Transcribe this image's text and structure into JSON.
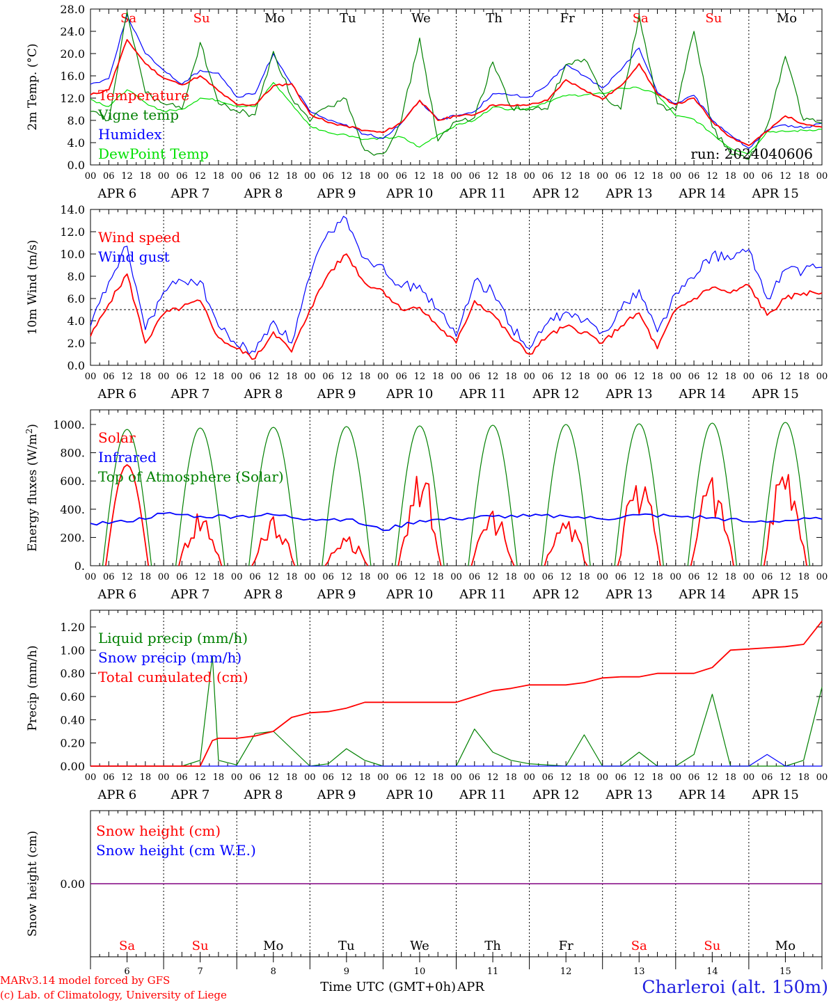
{
  "chart_data": [
    {
      "type": "line",
      "ylabel": "2m Temp. (°C)",
      "ylim": [
        0,
        28
      ],
      "yticks": [
        "0.0",
        "4.0",
        "8.0",
        "12.0",
        "16.0",
        "20.0",
        "24.0",
        "28.0"
      ],
      "annotation": "run: 2024040606",
      "x": [
        0,
        6,
        12,
        18,
        24,
        30,
        36,
        42,
        48,
        54,
        60,
        66,
        72,
        78,
        84,
        90,
        96,
        102,
        108,
        114,
        120,
        126,
        132,
        138,
        144,
        150,
        156,
        162,
        168,
        174,
        180,
        186,
        192,
        198,
        204,
        210,
        216,
        222,
        228,
        234,
        240
      ],
      "series": [
        {
          "name": "Temperature",
          "color": "#ff0000",
          "values": [
            12.6,
            13.5,
            22.5,
            18.2,
            15.6,
            14.4,
            16.0,
            13.3,
            10.8,
            10.8,
            14.2,
            14.6,
            9.2,
            7.6,
            7.0,
            6.2,
            5.8,
            7.6,
            11.6,
            8.0,
            8.8,
            9.0,
            10.8,
            10.6,
            10.8,
            11.6,
            15.3,
            13.5,
            11.8,
            14.2,
            18.2,
            12.7,
            10.8,
            12.0,
            7.8,
            5.0,
            3.5,
            6.0,
            8.8,
            7.4,
            6.8
          ]
        },
        {
          "name": "Vigne temp",
          "color": "#008000",
          "values": [
            9.6,
            8.0,
            27.5,
            13.0,
            11.0,
            10.0,
            22.0,
            11.0,
            9.6,
            9.0,
            20.4,
            12.0,
            7.8,
            10.6,
            11.8,
            2.6,
            2.0,
            8.0,
            22.8,
            4.3,
            7.8,
            8.5,
            18.5,
            10.4,
            10.0,
            10.0,
            18.0,
            19.0,
            13.0,
            10.0,
            27.0,
            11.0,
            9.8,
            24.0,
            6.8,
            2.0,
            1.0,
            7.0,
            19.5,
            8.0,
            7.5
          ]
        },
        {
          "name": "Humidex",
          "color": "#0000ff",
          "values": [
            14.5,
            15.5,
            27.0,
            20.0,
            17.0,
            14.5,
            17.0,
            16.5,
            12.2,
            12.8,
            20.0,
            14.5,
            9.6,
            8.0,
            7.2,
            5.5,
            4.8,
            7.5,
            11.6,
            8.2,
            8.8,
            9.6,
            12.8,
            12.5,
            12.2,
            14.4,
            18.0,
            16.0,
            13.8,
            17.0,
            21.0,
            13.0,
            11.0,
            12.5,
            8.0,
            5.4,
            3.0,
            6.2,
            7.2,
            6.6,
            7.5
          ]
        },
        {
          "name": "DewPoint Temp",
          "color": "#00e000",
          "values": [
            11.8,
            10.5,
            13.5,
            11.2,
            9.6,
            10.0,
            12.0,
            11.6,
            10.6,
            10.5,
            14.8,
            11.0,
            7.0,
            5.8,
            5.4,
            4.6,
            4.8,
            5.0,
            3.2,
            5.4,
            7.2,
            8.0,
            10.4,
            10.0,
            10.2,
            11.4,
            12.4,
            12.6,
            12.8,
            13.8,
            13.8,
            12.6,
            8.8,
            8.2,
            5.6,
            3.0,
            2.0,
            6.0,
            6.0,
            6.2,
            6.4
          ]
        }
      ]
    },
    {
      "type": "line",
      "ylabel": "10m Wind (m/s)",
      "ylim": [
        0,
        14
      ],
      "yticks": [
        "0.0",
        "2.0",
        "4.0",
        "6.0",
        "8.0",
        "10.0",
        "12.0",
        "14.0"
      ],
      "reference_line": 5.0,
      "x": [
        0,
        6,
        12,
        18,
        24,
        30,
        36,
        42,
        48,
        54,
        60,
        66,
        72,
        78,
        84,
        90,
        96,
        102,
        108,
        114,
        120,
        126,
        132,
        138,
        144,
        150,
        156,
        162,
        168,
        174,
        180,
        186,
        192,
        198,
        204,
        210,
        216,
        222,
        228,
        234,
        240
      ],
      "series": [
        {
          "name": "Wind speed",
          "color": "#ff0000",
          "values": [
            2.6,
            5.5,
            8.2,
            2.0,
            4.6,
            5.2,
            5.8,
            2.5,
            1.5,
            0.6,
            3.0,
            1.2,
            5.0,
            8.2,
            10.0,
            7.4,
            6.7,
            5.0,
            5.2,
            3.5,
            2.0,
            5.8,
            4.6,
            2.5,
            1.0,
            2.6,
            3.5,
            3.0,
            2.0,
            3.5,
            4.7,
            1.5,
            5.0,
            6.0,
            7.0,
            6.5,
            7.2,
            4.5,
            6.0,
            6.5,
            6.5
          ]
        },
        {
          "name": "Wind gust",
          "color": "#0000ff",
          "values": [
            3.5,
            7.5,
            10.7,
            3.2,
            6.6,
            7.6,
            7.6,
            3.5,
            1.8,
            1.2,
            4.0,
            2.0,
            8.0,
            12.0,
            13.2,
            9.6,
            9.0,
            7.0,
            7.2,
            5.0,
            2.6,
            7.6,
            6.6,
            3.5,
            1.5,
            3.8,
            4.8,
            4.0,
            3.0,
            5.0,
            6.8,
            3.0,
            6.5,
            7.8,
            10.0,
            9.5,
            10.4,
            6.0,
            8.6,
            8.5,
            8.8
          ]
        }
      ]
    },
    {
      "type": "line",
      "ylabel": "Energy fluxes (W/m²)",
      "ylim": [
        0,
        1100
      ],
      "yticks": [
        "0.",
        "200.",
        "400.",
        "600.",
        "800.",
        "1000."
      ],
      "series": [
        {
          "name": "Solar",
          "color": "#ff0000",
          "peaks": [
            715,
            430,
            370,
            230,
            750,
            420,
            360,
            680,
            690,
            760
          ]
        },
        {
          "name": "Infrared",
          "color": "#0000ff",
          "x": [
            0,
            12,
            24,
            36,
            48,
            60,
            72,
            84,
            96,
            108,
            120,
            132,
            144,
            156,
            168,
            180,
            192,
            204,
            216,
            228,
            240
          ],
          "values": [
            300,
            310,
            370,
            350,
            350,
            360,
            330,
            330,
            250,
            320,
            330,
            350,
            350,
            350,
            330,
            360,
            350,
            340,
            310,
            320,
            330
          ]
        },
        {
          "name": "Top of Atmosphere (Solar)",
          "color": "#008000",
          "peaks": [
            965,
            975,
            980,
            985,
            990,
            995,
            1000,
            1005,
            1010,
            1015
          ]
        }
      ]
    },
    {
      "type": "line",
      "ylabel": "Precip (mm/h)",
      "ylim": [
        0,
        1.3
      ],
      "yticks": [
        "0.00",
        "0.20",
        "0.40",
        "0.60",
        "0.80",
        "1.00",
        "1.20"
      ],
      "x": [
        0,
        12,
        24,
        30,
        36,
        40,
        42,
        48,
        54,
        60,
        66,
        72,
        78,
        84,
        90,
        96,
        102,
        108,
        114,
        120,
        126,
        132,
        138,
        144,
        150,
        156,
        162,
        168,
        174,
        180,
        186,
        192,
        198,
        204,
        210,
        216,
        222,
        228,
        234,
        240
      ],
      "series": [
        {
          "name": "Liquid precip (mm/h)",
          "color": "#008000",
          "values": [
            0,
            0,
            0,
            0,
            0.05,
            0.95,
            0.05,
            0.01,
            0.28,
            0.3,
            0.15,
            0,
            0.02,
            0.15,
            0.05,
            0,
            0,
            0,
            0,
            0,
            0.32,
            0.12,
            0.05,
            0.02,
            0.01,
            0,
            0.27,
            0,
            0,
            0.12,
            0,
            0,
            0.1,
            0.62,
            0,
            0,
            0,
            0,
            0.05,
            0.68
          ]
        },
        {
          "name": "Snow precip (mm/h)",
          "color": "#0000ff",
          "values": [
            0,
            0,
            0,
            0,
            0,
            0,
            0,
            0,
            0,
            0,
            0,
            0,
            0,
            0,
            0,
            0,
            0,
            0,
            0,
            0,
            0,
            0,
            0,
            0,
            0,
            0,
            0,
            0,
            0,
            0,
            0,
            0,
            0,
            0,
            0,
            0,
            0.1,
            0,
            0,
            0
          ]
        },
        {
          "name": "Total cumulated (cm)",
          "color": "#ff0000",
          "values": [
            0,
            0,
            0,
            0,
            0,
            0.22,
            0.24,
            0.24,
            0.26,
            0.3,
            0.42,
            0.46,
            0.47,
            0.5,
            0.55,
            0.55,
            0.55,
            0.55,
            0.55,
            0.55,
            0.6,
            0.65,
            0.67,
            0.7,
            0.7,
            0.7,
            0.72,
            0.76,
            0.77,
            0.77,
            0.8,
            0.8,
            0.8,
            0.85,
            1.0,
            1.01,
            1.02,
            1.03,
            1.05,
            1.25
          ]
        }
      ]
    },
    {
      "type": "line",
      "ylabel": "Snow height (cm)",
      "ytick": "0.00",
      "series": [
        {
          "name": "Snow height (cm)",
          "color": "#ff0000",
          "values": [
            0
          ]
        },
        {
          "name": "Snow height (cm W.E.)",
          "color": "#0000ff",
          "values": [
            0
          ]
        }
      ]
    }
  ],
  "axis": {
    "hour_labels": [
      "00",
      "06",
      "12",
      "18"
    ],
    "final_hour_label": "00",
    "month": "APR",
    "dates": [
      "6",
      "7",
      "8",
      "9",
      "10",
      "11",
      "12",
      "13",
      "14",
      "15"
    ],
    "day_names": [
      "Sa",
      "Su",
      "Mo",
      "Tu",
      "We",
      "Th",
      "Fr",
      "Sa",
      "Su",
      "Mo"
    ],
    "day_colors": [
      "#ff0000",
      "#ff0000",
      "#000000",
      "#000000",
      "#000000",
      "#000000",
      "#000000",
      "#ff0000",
      "#ff0000",
      "#000000"
    ],
    "xlabel": "Time UTC (GMT+0h)",
    "xlabel_month": "APR"
  },
  "footer": {
    "model": "MARv3.14 model forced by GFS",
    "copyright": "(c) Lab. of Climatology, University of Liege",
    "location": "Charleroi (alt. 150m)"
  },
  "colors": {
    "red": "#ff0000",
    "green": "#008000",
    "blue": "#0000ff",
    "lightgreen": "#00e000",
    "purple": "#800080"
  }
}
